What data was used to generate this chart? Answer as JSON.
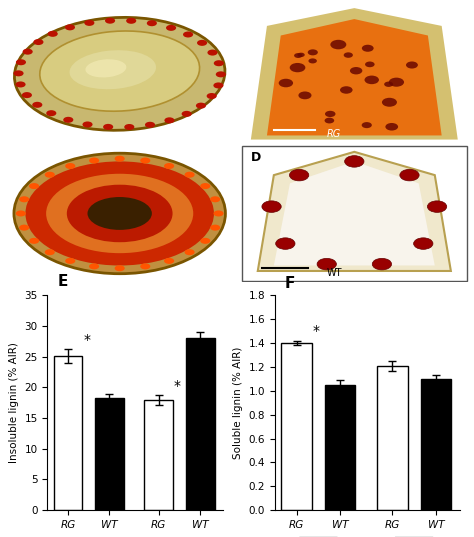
{
  "panel_E": {
    "title": "E",
    "ylabel": "Insoluble lignin (% AIR)",
    "ylim": [
      0,
      35
    ],
    "yticks": [
      0,
      5,
      10,
      15,
      20,
      25,
      30,
      35
    ],
    "bar_labels": [
      "RG",
      "WT",
      "RG",
      "WT"
    ],
    "values": [
      25.1,
      18.2,
      18.0,
      28.0
    ],
    "errors": [
      1.2,
      0.8,
      0.8,
      1.0
    ],
    "colors": [
      "white",
      "black",
      "white",
      "black"
    ],
    "star": [
      true,
      false,
      true,
      false
    ]
  },
  "panel_F": {
    "title": "F",
    "ylabel": "Soluble lignin (% AIR)",
    "ylim": [
      0,
      1.8
    ],
    "yticks": [
      0.0,
      0.2,
      0.4,
      0.6,
      0.8,
      1.0,
      1.2,
      1.4,
      1.6,
      1.8
    ],
    "bar_labels": [
      "RG",
      "WT",
      "RG",
      "WT"
    ],
    "values": [
      1.4,
      1.05,
      1.21,
      1.1
    ],
    "errors": [
      0.02,
      0.04,
      0.04,
      0.03
    ],
    "colors": [
      "white",
      "black",
      "white",
      "black"
    ],
    "star": [
      true,
      false,
      false,
      false
    ]
  },
  "photo_colors": {
    "A_bg": "#8B7355",
    "B_bg": "#0d0800",
    "C_bg": "#7a6830",
    "D_bg": "#ffffff"
  }
}
